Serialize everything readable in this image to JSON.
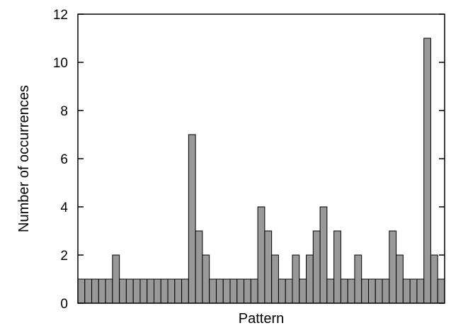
{
  "chart_data": {
    "type": "bar",
    "title": "",
    "xlabel": "Pattern",
    "ylabel": "Number of occurrences",
    "ylim": [
      0,
      12
    ],
    "yticks": [
      0,
      2,
      4,
      6,
      8,
      10,
      12
    ],
    "ytick_labels": [
      "0",
      "2",
      "4",
      "6",
      "8",
      "10",
      "12"
    ],
    "grid": false,
    "legend": false,
    "colors": {
      "bar_fill": "#999999",
      "bar_stroke": "#000000",
      "axis": "#000000"
    },
    "values": [
      1,
      1,
      1,
      1,
      1,
      2,
      1,
      1,
      1,
      1,
      1,
      1,
      1,
      1,
      1,
      1,
      7,
      3,
      2,
      1,
      1,
      1,
      1,
      1,
      1,
      1,
      4,
      3,
      2,
      1,
      1,
      2,
      1,
      2,
      3,
      4,
      1,
      3,
      1,
      1,
      2,
      1,
      1,
      1,
      1,
      3,
      2,
      1,
      1,
      1,
      11,
      2,
      1
    ]
  }
}
